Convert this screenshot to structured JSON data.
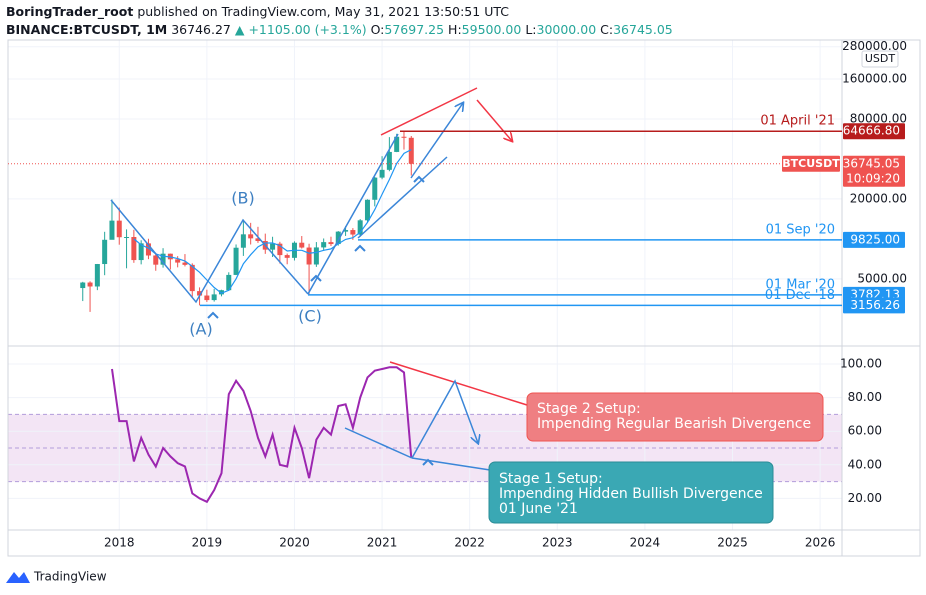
{
  "header": {
    "author": "BoringTrader_root",
    "published": "published on TradingView.com, May 31, 2021 13:50:51 UTC",
    "symbol": "BINANCE:BTCUSDT, 1M",
    "last": "36746.27",
    "change": "▲ +1105.00 (+3.1%)",
    "open_label": "O:",
    "open": "57697.25",
    "high_label": "H:",
    "high": "59500.00",
    "low_label": "L:",
    "low": "30000.00",
    "close_label": "C:",
    "close": "36745.05"
  },
  "chart_data": [
    {
      "type": "candlestick",
      "currency": "USDT",
      "log_scale": true,
      "grid": true,
      "up_color": "#26a69a",
      "down_color": "#ef5350",
      "x": [
        2017.5833,
        2017.6667,
        2017.75,
        2017.8333,
        2017.9167,
        2018,
        2018.0833,
        2018.1667,
        2018.25,
        2018.3333,
        2018.4167,
        2018.5,
        2018.5833,
        2018.6667,
        2018.75,
        2018.8333,
        2018.9167,
        2019,
        2019.0833,
        2019.1667,
        2019.25,
        2019.3333,
        2019.4167,
        2019.5,
        2019.5833,
        2019.6667,
        2019.75,
        2019.8333,
        2019.9167,
        2020,
        2020.0833,
        2020.1667,
        2020.25,
        2020.3333,
        2020.4167,
        2020.5,
        2020.5833,
        2020.6667,
        2020.75,
        2020.8333,
        2020.9167,
        2021,
        2021.0833,
        2021.1667,
        2021.25,
        2021.3333
      ],
      "open": [
        4261,
        4689,
        4378,
        6463,
        9838,
        13716,
        10285,
        10326,
        6923,
        9246,
        7495,
        6390,
        7731,
        7011,
        6626,
        6371,
        4041,
        3742,
        3458,
        3817,
        4105,
        5350,
        8574,
        10817,
        10086,
        9631,
        8293,
        9199,
        7546,
        7195,
        9352,
        8600,
        6410,
        8620,
        9448,
        9138,
        11335,
        11649,
        10776,
        13791,
        19695,
        28923,
        33092,
        45135,
        58740,
        57697
      ],
      "high": [
        4745,
        4789,
        6470,
        11300,
        19798,
        17176,
        11786,
        11700,
        9759,
        10020,
        7765,
        8507,
        7750,
        7410,
        7680,
        6540,
        4310,
        4140,
        4200,
        4140,
        5600,
        9074,
        13970,
        13200,
        12325,
        10950,
        10370,
        9500,
        7750,
        9578,
        10500,
        9188,
        9460,
        10067,
        10380,
        11444,
        12468,
        12050,
        14100,
        19863,
        29300,
        41950,
        58352,
        61844,
        64854,
        59500
      ],
      "low": [
        3400,
        2817,
        4110,
        5325,
        10800,
        9035,
        6000,
        6600,
        6425,
        7032,
        5750,
        6070,
        5880,
        6100,
        6200,
        3652,
        3156,
        3349,
        3370,
        3690,
        4050,
        5332,
        7440,
        9071,
        9320,
        7710,
        7300,
        6515,
        6435,
        6871,
        8450,
        3782,
        6150,
        8117,
        8833,
        8893,
        10518,
        9825,
        10374,
        13195,
        17572,
        28130,
        32296,
        45000,
        47044,
        30000
      ],
      "close": [
        4689,
        4378,
        6463,
        9838,
        13716,
        10285,
        10326,
        6923,
        9246,
        7495,
        6390,
        7731,
        7011,
        6626,
        6371,
        4041,
        3742,
        3458,
        3817,
        4105,
        5350,
        8574,
        10817,
        10086,
        9631,
        8293,
        9199,
        7546,
        7195,
        9352,
        8600,
        6410,
        8620,
        9448,
        9138,
        11335,
        11649,
        10776,
        13791,
        19695,
        28923,
        33092,
        45135,
        58740,
        57694,
        36745
      ],
      "ma": {
        "color": "#2196f3",
        "values": [
          null,
          null,
          null,
          null,
          null,
          null,
          null,
          10000,
          9000,
          8500,
          7700,
          7400,
          7300,
          7100,
          6800,
          6200,
          5600,
          4900,
          4300,
          3900,
          4100,
          5000,
          6500,
          7600,
          8700,
          9300,
          9300,
          8900,
          8100,
          8200,
          8200,
          7800,
          7900,
          8200,
          8400,
          9200,
          9900,
          10200,
          11200,
          13300,
          16600,
          21700,
          28000,
          37000,
          44000,
          47000
        ]
      },
      "xlim": [
        2016.73,
        2026.25
      ],
      "xticks": [
        2018,
        2019,
        2020,
        2021,
        2022,
        2023,
        2024,
        2025,
        2026
      ],
      "ylim": [
        1587,
        314500
      ],
      "yticks": [
        {
          "value": 5000,
          "label": "5000.00"
        },
        {
          "value": 20000,
          "label": "20000.00"
        },
        {
          "value": 80000,
          "label": "80000.00"
        },
        {
          "value": 160000,
          "label": "160000.00"
        },
        {
          "value": 280000,
          "label": "280000.00"
        }
      ],
      "levels": [
        {
          "label": "01 April '21",
          "value": 64666.8,
          "value_label": "64666.80",
          "color": "#b71c1c"
        },
        {
          "label": "01 Sep '20",
          "value": 9825,
          "value_label": "9825.00",
          "color": "#2196f3"
        },
        {
          "label": "01 Mar '20",
          "value": 3782.13,
          "value_label": "3782.13",
          "color": "#2196f3"
        },
        {
          "label": "01 Dec '18",
          "value": 3156.26,
          "value_label": "3156.26",
          "color": "#2196f3"
        }
      ],
      "last_price": {
        "symbol": "BTCUSDT",
        "value": 36745.05,
        "value_label": "36745.05",
        "countdown": "10:09:20",
        "color": "#ef5350"
      }
    },
    {
      "type": "line",
      "color": "#9c27b0",
      "values": [
        null,
        null,
        null,
        null,
        97,
        66,
        66,
        42,
        56,
        46,
        39,
        50,
        45,
        41,
        39,
        23,
        20,
        18,
        25,
        35,
        82,
        90,
        84,
        72,
        56,
        45,
        58,
        40,
        39,
        62,
        50,
        32,
        55,
        62,
        58,
        75,
        76,
        62,
        80,
        92,
        96,
        97,
        98,
        98,
        95,
        44
      ],
      "ylim": [
        1.2,
        110.7
      ],
      "yticks": [
        {
          "value": 20,
          "label": "20.00"
        },
        {
          "value": 40,
          "label": "40.00"
        },
        {
          "value": 60,
          "label": "60.00"
        },
        {
          "value": 80,
          "label": "80.00"
        },
        {
          "value": 100,
          "label": "100.00"
        }
      ],
      "band": [
        30,
        70
      ],
      "band_color": "#f3e5f5",
      "levels": [
        30,
        50,
        70
      ]
    }
  ],
  "annotations": {
    "points": [
      "(A)",
      "(B)",
      "(C)"
    ],
    "stage2": {
      "title": "Stage 2 Setup:",
      "text": "Impending Regular Bearish Divergence"
    },
    "stage1": {
      "title": "Stage 1 Setup:",
      "text": "Impending Hidden Bullish Divergence",
      "date": "01 June '21"
    }
  },
  "footer": {
    "brand": "TradingView"
  }
}
